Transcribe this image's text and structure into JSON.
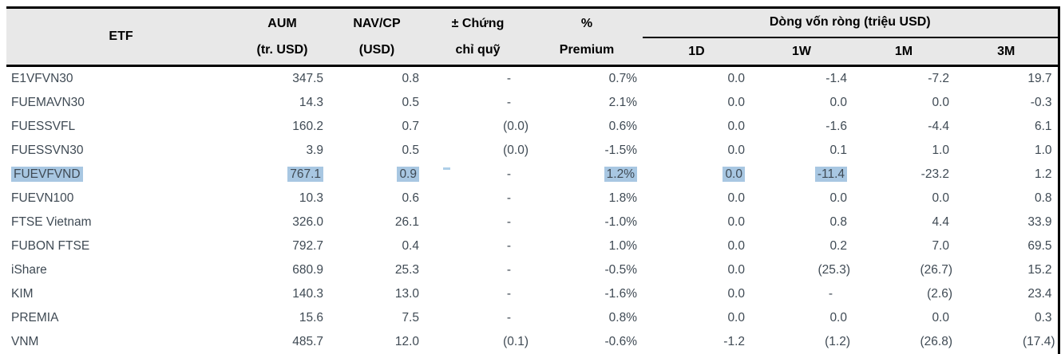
{
  "chart_data": {
    "type": "table",
    "title": "",
    "header": {
      "etf": "ETF",
      "aum": [
        "AUM",
        "(tr. USD)"
      ],
      "nav": [
        "NAV/CP",
        "(USD)"
      ],
      "units": [
        "± Chứng",
        "chỉ quỹ"
      ],
      "premium": [
        "%",
        "Premium"
      ],
      "netflow_group": "Dòng vốn ròng (triệu USD)",
      "netflow": [
        "1D",
        "1W",
        "1M",
        "3M"
      ]
    },
    "rows": [
      {
        "etf": "E1VFVN30",
        "aum": "347.5",
        "nav": "0.8",
        "units": "-",
        "premium": "0.7%",
        "d1": "0.0",
        "w1": "-1.4",
        "m1": "-7.2",
        "m3": "19.7"
      },
      {
        "etf": "FUEMAVN30",
        "aum": "14.3",
        "nav": "0.5",
        "units": "-",
        "premium": "2.1%",
        "d1": "0.0",
        "w1": "0.0",
        "m1": "0.0",
        "m3": "-0.3"
      },
      {
        "etf": "FUESSVFL",
        "aum": "160.2",
        "nav": "0.7",
        "units": "(0.0)",
        "premium": "0.6%",
        "d1": "0.0",
        "w1": "-1.6",
        "m1": "-4.4",
        "m3": "6.1"
      },
      {
        "etf": "FUESSVN30",
        "aum": "3.9",
        "nav": "0.5",
        "units": "(0.0)",
        "premium": "-1.5%",
        "d1": "0.0",
        "w1": "0.1",
        "m1": "1.0",
        "m3": "1.0"
      },
      {
        "etf": "FUEVFVND",
        "aum": "767.1",
        "nav": "0.9",
        "units": "-",
        "premium": "1.2%",
        "d1": "0.0",
        "w1": "-11.4",
        "m1": "-23.2",
        "m3": "1.2",
        "highlight": [
          "etf",
          "aum",
          "nav",
          "premium",
          "d1",
          "w1"
        ]
      },
      {
        "etf": "FUEVN100",
        "aum": "10.3",
        "nav": "0.6",
        "units": "-",
        "premium": "1.8%",
        "d1": "0.0",
        "w1": "0.0",
        "m1": "0.0",
        "m3": "0.8"
      },
      {
        "etf": "FTSE Vietnam",
        "aum": "326.0",
        "nav": "26.1",
        "units": "-",
        "premium": "-1.0%",
        "d1": "0.0",
        "w1": "0.8",
        "m1": "4.4",
        "m3": "33.9"
      },
      {
        "etf": "FUBON FTSE",
        "aum": "792.7",
        "nav": "0.4",
        "units": "-",
        "premium": "1.0%",
        "d1": "0.0",
        "w1": "0.2",
        "m1": "7.0",
        "m3": "69.5"
      },
      {
        "etf": "iShare",
        "aum": "680.9",
        "nav": "25.3",
        "units": "-",
        "premium": "-0.5%",
        "d1": "0.0",
        "w1": "(25.3)",
        "m1": "(26.7)",
        "m3": "15.2"
      },
      {
        "etf": "KIM",
        "aum": "140.3",
        "nav": "13.0",
        "units": "-",
        "premium": "-1.6%",
        "d1": "0.0",
        "w1": "-",
        "m1": "(2.6)",
        "m3": "23.4"
      },
      {
        "etf": "PREMIA",
        "aum": "15.6",
        "nav": "7.5",
        "units": "-",
        "premium": "0.8%",
        "d1": "0.0",
        "w1": "0.0",
        "m1": "0.0",
        "m3": "0.3"
      },
      {
        "etf": "VNM",
        "aum": "485.7",
        "nav": "12.0",
        "units": "(0.1)",
        "premium": "-0.6%",
        "d1": "-1.2",
        "w1": "(1.2)",
        "m1": "(26.8)",
        "m3": "(17.4)"
      }
    ]
  },
  "colors": {
    "selection_highlight": "#a8c7e2",
    "header_background": "#e8e8e8",
    "body_text": "#3f4a54",
    "header_text": "#000000",
    "border": "#000000"
  },
  "selection": {
    "selected_row": "FUEVFVND",
    "artifact": "selection-mark-after-nav-cell"
  }
}
